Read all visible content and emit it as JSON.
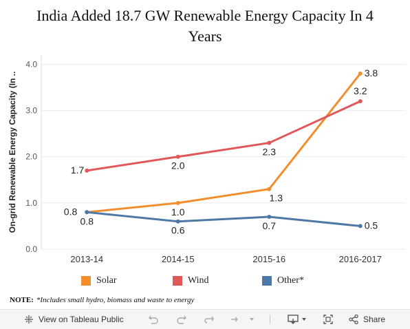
{
  "title_line1": "India Added 18.7 GW Renewable Energy Capacity In 4",
  "title_line2": "Years",
  "chart_data": {
    "type": "line",
    "title": "India Added 18.7 GW Renewable Energy Capacity In 4 Years",
    "ylabel": "On-grid Renewable Energy Capacity (In ..",
    "xlabel": "",
    "categories": [
      "2013-14",
      "2014-15",
      "2015-16",
      "2016-2017"
    ],
    "ylim": [
      0,
      4.2
    ],
    "yticks": [
      "0.0",
      "1.0",
      "2.0",
      "3.0",
      "4.0"
    ],
    "series": [
      {
        "name": "Solar",
        "color": "#f28e2b",
        "values": [
          0.8,
          1.0,
          1.3,
          3.8
        ],
        "labels": [
          "0.8",
          "1.0",
          "1.3",
          "3.8"
        ]
      },
      {
        "name": "Wind",
        "color": "#e15759",
        "values": [
          1.7,
          2.0,
          2.3,
          3.2
        ],
        "labels": [
          "1.7",
          "2.0",
          "2.3",
          "3.2"
        ]
      },
      {
        "name": "Other*",
        "color": "#4e79a7",
        "values": [
          0.8,
          0.6,
          0.7,
          0.5
        ],
        "labels": [
          "0.8",
          "0.6",
          "0.7",
          "0.5"
        ]
      }
    ],
    "legend_position": "bottom",
    "grid": "horizontal"
  },
  "note": {
    "label": "NOTE:",
    "text": "*Includes small hydro, biomass and waste to energy"
  },
  "toolbar": {
    "view_label": "View on Tableau Public",
    "share_label": "Share"
  }
}
